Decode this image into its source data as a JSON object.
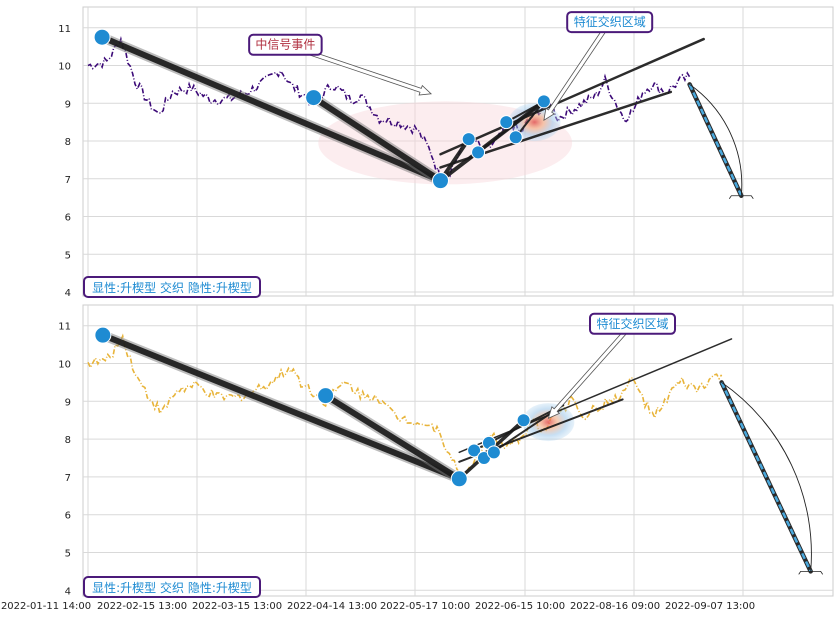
{
  "x_tick_labels": [
    "2022-01-11 14:00",
    "2022-02-15 13:00",
    "2022-03-15 13:00",
    "2022-04-14 13:00",
    "2022-05-17 10:00",
    "2022-06-15 10:00",
    "2022-08-16 09:00",
    "2022-09-07 13:00"
  ],
  "colors": {
    "top_line": "#3c0a78",
    "bottom_line": "#e8b43a",
    "pivot": "#1e8bd2",
    "wedge": "#1a1a1a",
    "box_border": "#4b1a7a",
    "label_text": "#1e8bd2",
    "signal_text": "#b03040"
  },
  "chart_data": [
    {
      "type": "line",
      "panel": "top",
      "ylim": [
        3.9,
        11.5
      ],
      "yticks": [
        4,
        5,
        6,
        7,
        8,
        9,
        10,
        11
      ],
      "grid": true,
      "series_color": "#3c0a78",
      "price_keypoints": [
        [
          0,
          10.0
        ],
        [
          4,
          10.1
        ],
        [
          7,
          10.7
        ],
        [
          10,
          9.6
        ],
        [
          13,
          9.0
        ],
        [
          15,
          8.7
        ],
        [
          18,
          9.3
        ],
        [
          22,
          9.4
        ],
        [
          26,
          9.1
        ],
        [
          30,
          9.1
        ],
        [
          34,
          9.3
        ],
        [
          38,
          9.6
        ],
        [
          41,
          9.9
        ],
        [
          43,
          9.5
        ],
        [
          46,
          9.2
        ],
        [
          48,
          9.0
        ],
        [
          52,
          9.5
        ],
        [
          56,
          9.1
        ],
        [
          58,
          9.2
        ],
        [
          60,
          8.9
        ],
        [
          62,
          8.6
        ],
        [
          66,
          8.5
        ],
        [
          70,
          8.3
        ],
        [
          73,
          7.7
        ],
        [
          75,
          7.0
        ],
        [
          77,
          7.2
        ],
        [
          80,
          7.9
        ],
        [
          82,
          8.1
        ],
        [
          84,
          7.7
        ],
        [
          87,
          8.0
        ],
        [
          90,
          8.5
        ],
        [
          92,
          8.2
        ],
        [
          94,
          8.6
        ],
        [
          96,
          8.8
        ],
        [
          98,
          9.1
        ],
        [
          100,
          8.6
        ],
        [
          104,
          8.9
        ],
        [
          108,
          9.2
        ],
        [
          110,
          9.6
        ],
        [
          112,
          9.1
        ],
        [
          114,
          8.6
        ],
        [
          116,
          8.8
        ],
        [
          118,
          9.3
        ],
        [
          120,
          9.5
        ],
        [
          123,
          9.3
        ],
        [
          126,
          9.6
        ],
        [
          128,
          9.7
        ]
      ],
      "pivots": [
        [
          3,
          10.75
        ],
        [
          48,
          9.15
        ],
        [
          75,
          6.95
        ],
        [
          81,
          8.05
        ],
        [
          83,
          7.7
        ],
        [
          89,
          8.5
        ],
        [
          91,
          8.1
        ],
        [
          97,
          9.05
        ]
      ],
      "wedge_lines": [
        {
          "from": [
            3,
            10.75
          ],
          "to": [
            75,
            6.95
          ],
          "width": 6
        },
        {
          "from": [
            48,
            9.15
          ],
          "to": [
            75,
            6.95
          ],
          "width": 6
        },
        {
          "from": [
            75,
            6.95
          ],
          "to": [
            81,
            8.05
          ],
          "width": 4
        },
        {
          "from": [
            75,
            6.95
          ],
          "to": [
            97,
            9.05
          ],
          "width": 4
        },
        {
          "from": [
            75,
            7.65
          ],
          "to": [
            131,
            10.7
          ],
          "width": 2.5
        },
        {
          "from": [
            75,
            7.3
          ],
          "to": [
            124,
            9.3
          ],
          "width": 2.5
        },
        {
          "from": [
            83,
            7.7
          ],
          "to": [
            97,
            9.05
          ],
          "width": 2
        },
        {
          "from": [
            89,
            8.5
          ],
          "to": [
            97,
            9.05
          ],
          "width": 2
        },
        {
          "from": [
            91,
            8.1
          ],
          "to": [
            97,
            9.05
          ],
          "width": 2
        }
      ],
      "projection": {
        "from": [
          128,
          9.5
        ],
        "to": [
          139,
          6.55
        ]
      },
      "signal_ellipse": {
        "cx": 76,
        "cy": 7.95,
        "rx": 20,
        "ry": 1.1
      },
      "cross_region": {
        "cx": 95,
        "cy": 8.5
      },
      "annotations": [
        {
          "text": "中信号事件",
          "anchor": [
            42,
            10.55
          ],
          "points_to": [
            73,
            9.25
          ],
          "color": "signal_text"
        },
        {
          "text": "特征交织区域",
          "anchor": [
            111,
            11.15
          ],
          "points_to": [
            97,
            8.55
          ],
          "color": "label_text"
        }
      ],
      "label": "显性:升楔型 交织 隐性:升楔型"
    },
    {
      "type": "line",
      "panel": "bottom",
      "ylim": [
        3.85,
        11.5
      ],
      "yticks": [
        4,
        5,
        6,
        7,
        8,
        9,
        10,
        11
      ],
      "grid": true,
      "series_color": "#e8b43a",
      "price_keypoints": [
        [
          0,
          10.0
        ],
        [
          4,
          10.1
        ],
        [
          7,
          10.7
        ],
        [
          10,
          9.6
        ],
        [
          13,
          9.0
        ],
        [
          15,
          8.7
        ],
        [
          18,
          9.3
        ],
        [
          22,
          9.4
        ],
        [
          26,
          9.1
        ],
        [
          30,
          9.1
        ],
        [
          34,
          9.3
        ],
        [
          38,
          9.6
        ],
        [
          41,
          9.9
        ],
        [
          43,
          9.5
        ],
        [
          46,
          9.2
        ],
        [
          48,
          9.0
        ],
        [
          52,
          9.5
        ],
        [
          56,
          9.1
        ],
        [
          58,
          9.2
        ],
        [
          60,
          8.9
        ],
        [
          62,
          8.6
        ],
        [
          66,
          8.5
        ],
        [
          70,
          8.3
        ],
        [
          73,
          7.7
        ],
        [
          75,
          7.0
        ],
        [
          77,
          7.2
        ],
        [
          80,
          7.9
        ],
        [
          82,
          8.1
        ],
        [
          84,
          7.7
        ],
        [
          87,
          8.0
        ],
        [
          90,
          8.5
        ],
        [
          92,
          8.2
        ],
        [
          94,
          8.6
        ],
        [
          96,
          8.8
        ],
        [
          98,
          9.1
        ],
        [
          100,
          8.6
        ],
        [
          104,
          8.9
        ],
        [
          108,
          9.2
        ],
        [
          110,
          9.6
        ],
        [
          112,
          9.1
        ],
        [
          114,
          8.6
        ],
        [
          116,
          8.8
        ],
        [
          118,
          9.3
        ],
        [
          120,
          9.5
        ],
        [
          123,
          9.3
        ],
        [
          126,
          9.6
        ],
        [
          128,
          9.7
        ]
      ],
      "pivots": [
        [
          3,
          10.75
        ],
        [
          48,
          9.15
        ],
        [
          75,
          6.95
        ],
        [
          78,
          7.7
        ],
        [
          80,
          7.5
        ],
        [
          81,
          7.9
        ],
        [
          82,
          7.65
        ],
        [
          88,
          8.5
        ]
      ],
      "wedge_lines": [
        {
          "from": [
            3,
            10.75
          ],
          "to": [
            75,
            6.95
          ],
          "width": 6
        },
        {
          "from": [
            48,
            9.15
          ],
          "to": [
            75,
            6.95
          ],
          "width": 6
        },
        {
          "from": [
            75,
            6.95
          ],
          "to": [
            88,
            8.5
          ],
          "width": 3.5
        },
        {
          "from": [
            75,
            7.65
          ],
          "to": [
            130,
            10.65
          ],
          "width": 1.5
        },
        {
          "from": [
            75,
            7.4
          ],
          "to": [
            108,
            9.05
          ],
          "width": 2
        },
        {
          "from": [
            78,
            7.7
          ],
          "to": [
            96,
            8.9
          ],
          "width": 2
        },
        {
          "from": [
            80,
            7.5
          ],
          "to": [
            96,
            8.9
          ],
          "width": 2
        }
      ],
      "projection": {
        "from": [
          128,
          9.5
        ],
        "to": [
          146,
          4.5
        ]
      },
      "cross_region": {
        "cx": 93,
        "cy": 8.45
      },
      "annotations": [
        {
          "text": "特征交织区域",
          "anchor": [
            110,
            11.05
          ],
          "points_to": [
            93,
            8.55
          ],
          "color": "label_text"
        }
      ],
      "label": "显性:升楔型 交织 隐性:升楔型"
    }
  ]
}
